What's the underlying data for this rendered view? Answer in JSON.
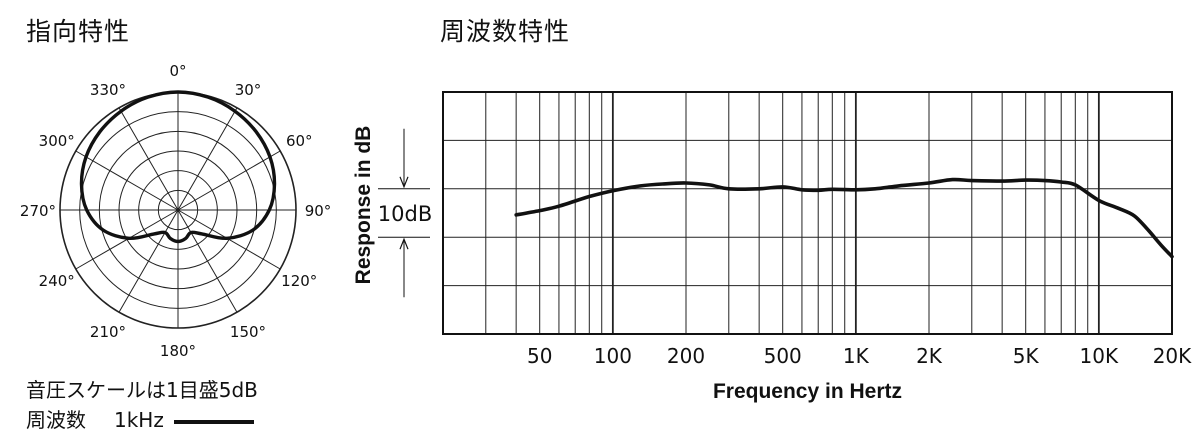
{
  "polar_title": "指向特性",
  "freq_title": "周波数特性",
  "scale_note": "音圧スケールは1目盛5dB",
  "freq_note_label": "周波数",
  "freq_note_value": "1kHz",
  "chart_data": [
    {
      "type": "polar",
      "angle_labels": [
        "0°",
        "30°",
        "60°",
        "90°",
        "120°",
        "150°",
        "180°",
        "210°",
        "240°",
        "270°",
        "300°",
        "330°"
      ],
      "rings": 6,
      "ring_step_db": 5,
      "series": [
        {
          "name": "1kHz",
          "color": "#111111",
          "angles_deg": [
            0,
            15,
            30,
            45,
            60,
            75,
            90,
            105,
            120,
            135,
            150,
            165,
            180,
            195,
            210,
            225,
            240,
            255,
            270,
            285,
            300,
            315,
            330,
            345
          ],
          "response_db": [
            0,
            -0.3,
            -1,
            -1.9,
            -3,
            -4.6,
            -6.8,
            -10.3,
            -15.6,
            -21.4,
            -23.4,
            -22.5,
            -22,
            -22.5,
            -23.4,
            -21.4,
            -15.6,
            -10.3,
            -6.8,
            -4.6,
            -3,
            -1.9,
            -1,
            -0.3
          ]
        }
      ]
    },
    {
      "type": "line",
      "xlabel": "Frequency in Hertz",
      "ylabel": "Response in dB",
      "x_scale": "log",
      "xlim": [
        20,
        20000
      ],
      "x_ticks": [
        {
          "value": 50,
          "label": "50"
        },
        {
          "value": 100,
          "label": "100"
        },
        {
          "value": 200,
          "label": "200"
        },
        {
          "value": 500,
          "label": "500"
        },
        {
          "value": 1000,
          "label": "1K"
        },
        {
          "value": 2000,
          "label": "2K"
        },
        {
          "value": 5000,
          "label": "5K"
        },
        {
          "value": 10000,
          "label": "10K"
        },
        {
          "value": 20000,
          "label": "20K"
        }
      ],
      "ylim": [
        -30,
        20
      ],
      "y_grid_step_db": 10,
      "scale_bar_label": "10dB",
      "series": [
        {
          "color": "#111111",
          "x": [
            40,
            50,
            60,
            80,
            100,
            130,
            160,
            200,
            250,
            300,
            400,
            500,
            600,
            700,
            800,
            1000,
            1200,
            1500,
            2000,
            2500,
            3000,
            4000,
            5000,
            6000,
            7000,
            8000,
            10000,
            12000,
            14000,
            16000,
            18000,
            20000
          ],
          "y": [
            -5.4,
            -4.5,
            -3.6,
            -1.6,
            -0.4,
            0.6,
            1,
            1.2,
            0.8,
            0,
            0,
            0.4,
            -0.2,
            -0.3,
            -0.1,
            -0.2,
            0,
            0.6,
            1.2,
            1.9,
            1.7,
            1.6,
            1.8,
            1.7,
            1.4,
            0.8,
            -2.4,
            -4,
            -5.6,
            -8.6,
            -11.6,
            -14
          ]
        }
      ]
    }
  ]
}
